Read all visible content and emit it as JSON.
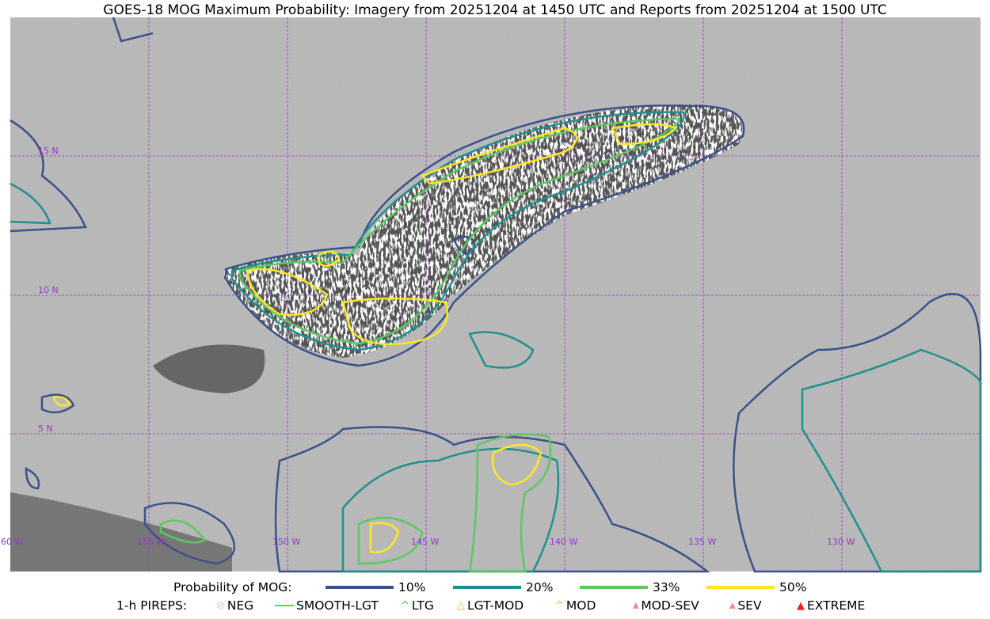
{
  "title": "GOES-18 MOG Maximum Probability: Imagery from 20251204 at 1450 UTC and Reports from 20251204 at 1500 UTC",
  "map": {
    "longitude_labels": [
      "60 W",
      "155 W",
      "150 W",
      "145 W",
      "140 W",
      "135 W",
      "130 W"
    ],
    "latitude_labels": [
      "15 N",
      "10 N",
      "5 N"
    ],
    "grid_color": "#9933cc"
  },
  "legend": {
    "probability_label": "Probability of MOG:",
    "probability_levels": [
      {
        "label": "10%",
        "color": "#3b528b"
      },
      {
        "label": "20%",
        "color": "#21908d"
      },
      {
        "label": "33%",
        "color": "#5dc863"
      },
      {
        "label": "50%",
        "color": "#fde725"
      }
    ],
    "pireps_label": "1-h PIREPS:",
    "pireps": [
      {
        "label": "NEG",
        "icon": "neg-icon",
        "color": "#c8c8ff"
      },
      {
        "label": "SMOOTH-LGT",
        "icon": "line-icon",
        "color": "#33ee33"
      },
      {
        "label": "LTG",
        "icon": "caret-icon",
        "color": "#22dd22"
      },
      {
        "label": "LGT-MOD",
        "icon": "triangle-underline-icon",
        "color": "#ffb020"
      },
      {
        "label": "MOD",
        "icon": "caret-icon",
        "color": "#ffb020"
      },
      {
        "label": "MOD-SEV",
        "icon": "double-triangle-icon",
        "color": "#ff3030"
      },
      {
        "label": "SEV",
        "icon": "double-caret-icon",
        "color": "#ff3030"
      },
      {
        "label": "EXTREME",
        "icon": "filled-triangle-icon",
        "color": "#ff1a1a"
      }
    ]
  }
}
